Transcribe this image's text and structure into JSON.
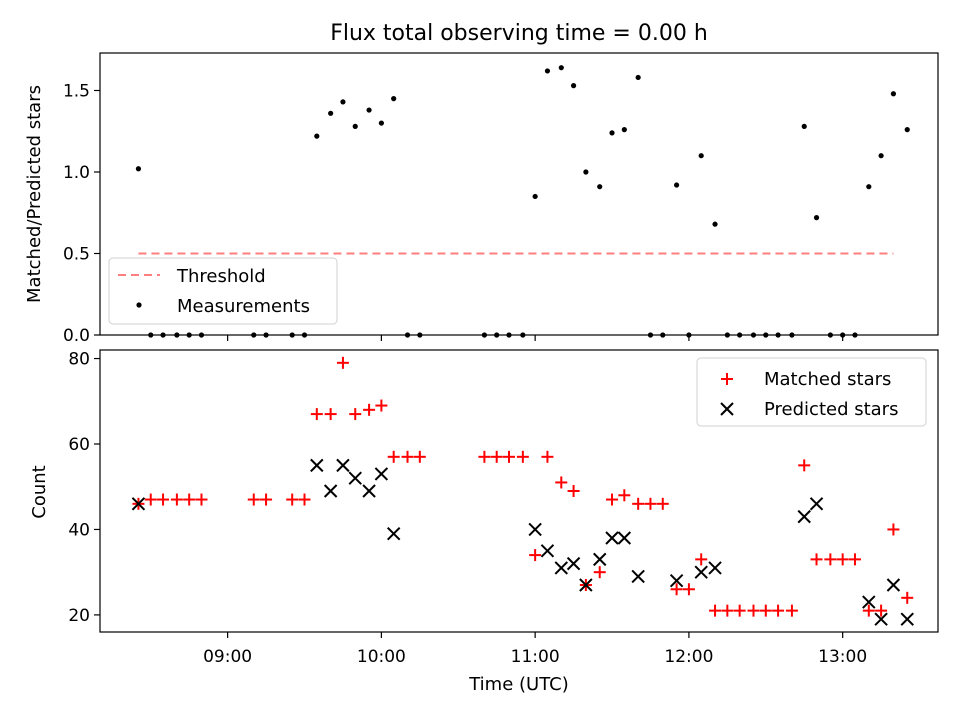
{
  "chart_data": [
    {
      "type": "scatter",
      "title": "Flux total observing time = 0.00 h",
      "ylabel": "Matched/Predicted stars",
      "xlabel": "",
      "ylim": [
        0,
        1.73
      ],
      "yticks": [
        0.0,
        0.5,
        1.0,
        1.5
      ],
      "ytick_labels": [
        "0.0",
        "0.5",
        "1.0",
        "1.5"
      ],
      "x_unit": "hours UTC",
      "xlim": [
        8.17,
        13.62
      ],
      "legend_position": "lower-left",
      "threshold": {
        "name": "Threshold",
        "value": 0.5,
        "x_range": [
          8.42,
          13.33
        ],
        "color": "#ff7f7f"
      },
      "series": [
        {
          "name": "Measurements",
          "color": "#000000",
          "x": [
            8.42,
            8.5,
            8.58,
            8.67,
            8.75,
            8.83,
            9.17,
            9.25,
            9.42,
            9.5,
            9.58,
            9.67,
            9.75,
            9.83,
            9.92,
            10.0,
            10.08,
            10.17,
            10.25,
            10.67,
            10.75,
            10.83,
            10.92,
            11.0,
            11.08,
            11.17,
            11.25,
            11.33,
            11.42,
            11.5,
            11.58,
            11.67,
            11.75,
            11.83,
            11.92,
            12.0,
            12.08,
            12.17,
            12.25,
            12.33,
            12.42,
            12.5,
            12.58,
            12.67,
            12.75,
            12.83,
            12.92,
            13.0,
            13.08,
            13.17,
            13.25,
            13.33,
            13.42
          ],
          "y": [
            1.02,
            0,
            0,
            0,
            0,
            0,
            0,
            0,
            0,
            0,
            1.22,
            1.36,
            1.43,
            1.28,
            1.38,
            1.3,
            1.45,
            0,
            0,
            0,
            0,
            0,
            0,
            0.85,
            1.62,
            1.64,
            1.53,
            1.0,
            0.91,
            1.24,
            1.26,
            1.58,
            0,
            0,
            0.92,
            0,
            1.1,
            0.68,
            0,
            0,
            0,
            0,
            0,
            0,
            1.28,
            0.72,
            0,
            0,
            0,
            0.91,
            1.1,
            1.48,
            1.26
          ]
        }
      ]
    },
    {
      "type": "scatter",
      "ylabel": "Count",
      "xlabel": "Time (UTC)",
      "ylim": [
        16,
        82
      ],
      "yticks": [
        20,
        40,
        60,
        80
      ],
      "ytick_labels": [
        "20",
        "40",
        "60",
        "80"
      ],
      "x_unit": "hours UTC",
      "xlim": [
        8.17,
        13.62
      ],
      "xticks": [
        9,
        10,
        11,
        12,
        13
      ],
      "xtick_labels": [
        "09:00",
        "10:00",
        "11:00",
        "12:00",
        "13:00"
      ],
      "legend_position": "upper-right",
      "series": [
        {
          "name": "Matched stars",
          "color": "#ff0000",
          "marker": "plus",
          "x": [
            8.42,
            8.5,
            8.58,
            8.67,
            8.75,
            8.83,
            9.17,
            9.25,
            9.42,
            9.5,
            9.58,
            9.67,
            9.75,
            9.83,
            9.92,
            10.0,
            10.08,
            10.17,
            10.25,
            10.67,
            10.75,
            10.83,
            10.92,
            11.0,
            11.08,
            11.17,
            11.25,
            11.33,
            11.42,
            11.5,
            11.58,
            11.67,
            11.75,
            11.83,
            11.92,
            12.0,
            12.08,
            12.17,
            12.25,
            12.33,
            12.42,
            12.5,
            12.58,
            12.67,
            12.75,
            12.83,
            12.92,
            13.0,
            13.08,
            13.17,
            13.25,
            13.33,
            13.42
          ],
          "y": [
            46,
            47,
            47,
            47,
            47,
            47,
            47,
            47,
            47,
            47,
            67,
            67,
            79,
            67,
            68,
            69,
            57,
            57,
            57,
            57,
            57,
            57,
            57,
            34,
            57,
            51,
            49,
            27,
            30,
            47,
            48,
            46,
            46,
            46,
            26,
            26,
            33,
            21,
            21,
            21,
            21,
            21,
            21,
            21,
            55,
            33,
            33,
            33,
            33,
            21,
            21,
            40,
            24
          ]
        },
        {
          "name": "Predicted stars",
          "color": "#000000",
          "marker": "x",
          "x": [
            8.42,
            9.58,
            9.67,
            9.75,
            9.83,
            9.92,
            10.0,
            10.08,
            11.0,
            11.08,
            11.17,
            11.25,
            11.33,
            11.42,
            11.5,
            11.58,
            11.67,
            11.92,
            12.08,
            12.17,
            12.75,
            12.83,
            13.17,
            13.25,
            13.33,
            13.42
          ],
          "y": [
            46,
            55,
            49,
            55,
            52,
            49,
            53,
            39,
            40,
            35,
            31,
            32,
            27,
            33,
            38,
            38,
            29,
            28,
            30,
            31,
            43,
            46,
            23,
            19,
            27,
            19
          ]
        }
      ]
    }
  ]
}
